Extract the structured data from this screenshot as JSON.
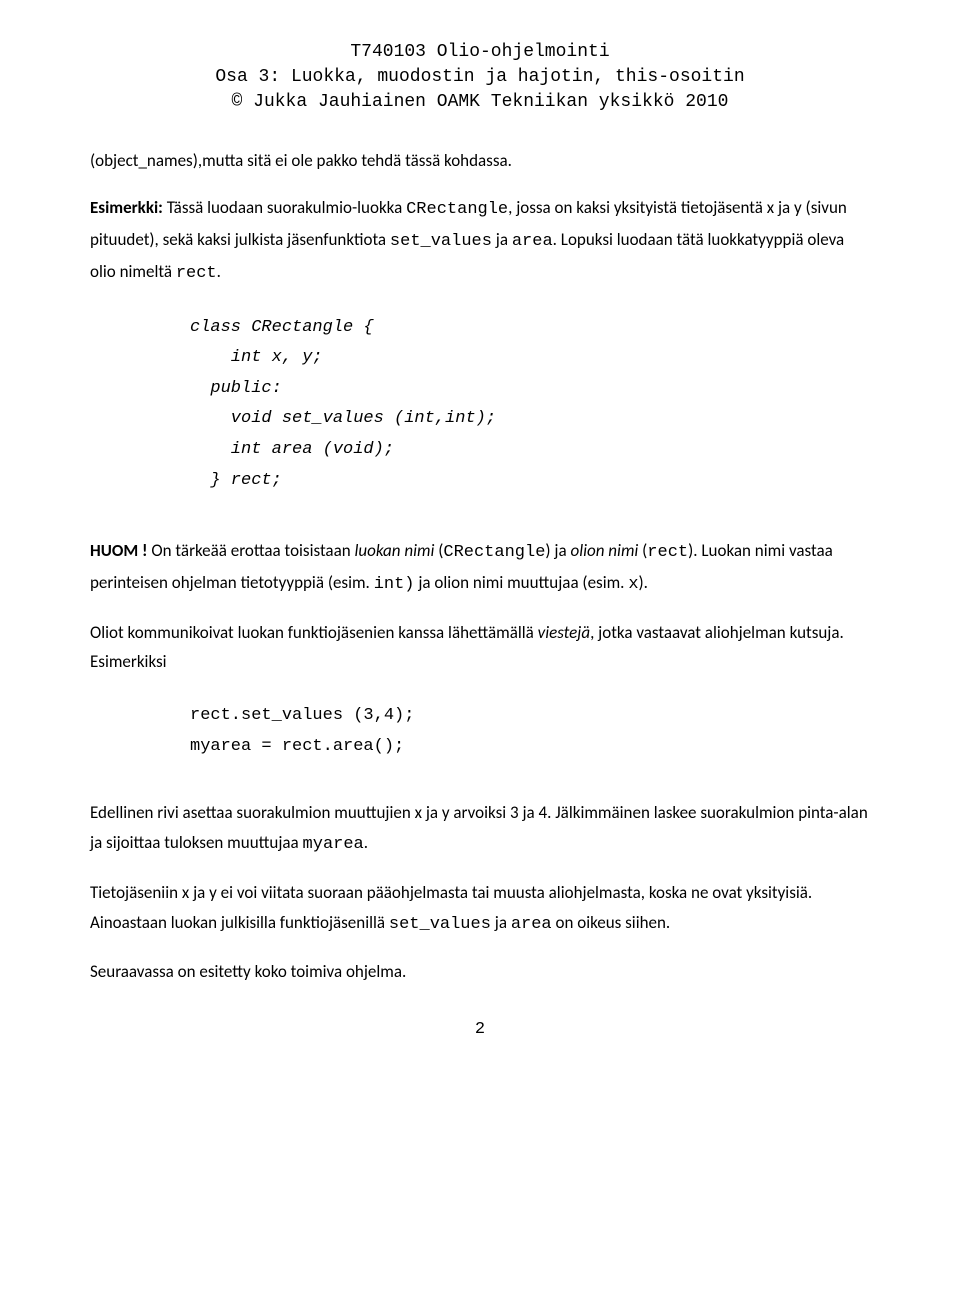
{
  "header": {
    "line1": "T740103 Olio-ohjelmointi",
    "line2": "Osa 3: Luokka, muodostin ja hajotin, this-osoitin",
    "line3": "© Jukka Jauhiainen OAMK Tekniikan yksikkö 2010"
  },
  "p1": "(object_names),mutta sitä ei ole pakko tehdä tässä kohdassa.",
  "p2a": "Esimerkki:",
  "p2b": " Tässä luodaan suorakulmio-luokka ",
  "p2c": "CRectangle",
  "p2d": ", jossa on kaksi yksityistä tietojäsentä x ja y (sivun pituudet), sekä kaksi julkista jäsenfunktiota ",
  "p2e": "set_values",
  "p2f": " ja ",
  "p2g": "area",
  "p2h": ". Lopuksi luodaan tätä luokkatyyppiä oleva olio nimeltä ",
  "p2i": "rect",
  "p2j": ".",
  "code1": "class CRectangle {\n    int x, y;\n  public:\n    void set_values (int,int);\n    int area (void);\n  } rect;",
  "p3a": "HUOM !",
  "p3b": " On tärkeää erottaa toisistaan ",
  "p3c": "luokan nimi",
  "p3d": " (",
  "p3e": "CRectangle",
  "p3f": ") ja ",
  "p3g": "olion nimi",
  "p3h": " (",
  "p3i": "rect",
  "p3j": "). Luokan nimi vastaa perinteisen ohjelman tietotyyppiä (esim. ",
  "p3k": "int)",
  "p3l": " ja olion nimi muuttujaa (esim. ",
  "p3m": "x",
  "p3n": ").",
  "p4a": "Oliot kommunikoivat luokan funktiojäsenien kanssa lähettämällä ",
  "p4b": "viestejä",
  "p4c": ", jotka vastaavat aliohjelman kutsuja. Esimerkiksi",
  "code2": "rect.set_values (3,4);\nmyarea = rect.area();",
  "p5a": "Edellinen rivi asettaa suorakulmion muuttujien x ja y arvoiksi 3 ja 4. Jälkimmäinen laskee suorakulmion pinta-alan ja sijoittaa tuloksen muuttujaa ",
  "p5b": "myarea",
  "p5c": ".",
  "p6a": "Tietojäseniin x ja y ei voi viitata suoraan pääohjelmasta tai muusta aliohjelmasta, koska ne ovat yksityisiä. Ainoastaan luokan julkisilla funktiojäsenillä ",
  "p6b": "set_values",
  "p6c": " ja ",
  "p6d": "area",
  "p6e": " on oikeus siihen.",
  "p7": "Seuraavassa on esitetty koko toimiva ohjelma.",
  "pagenum": "2"
}
